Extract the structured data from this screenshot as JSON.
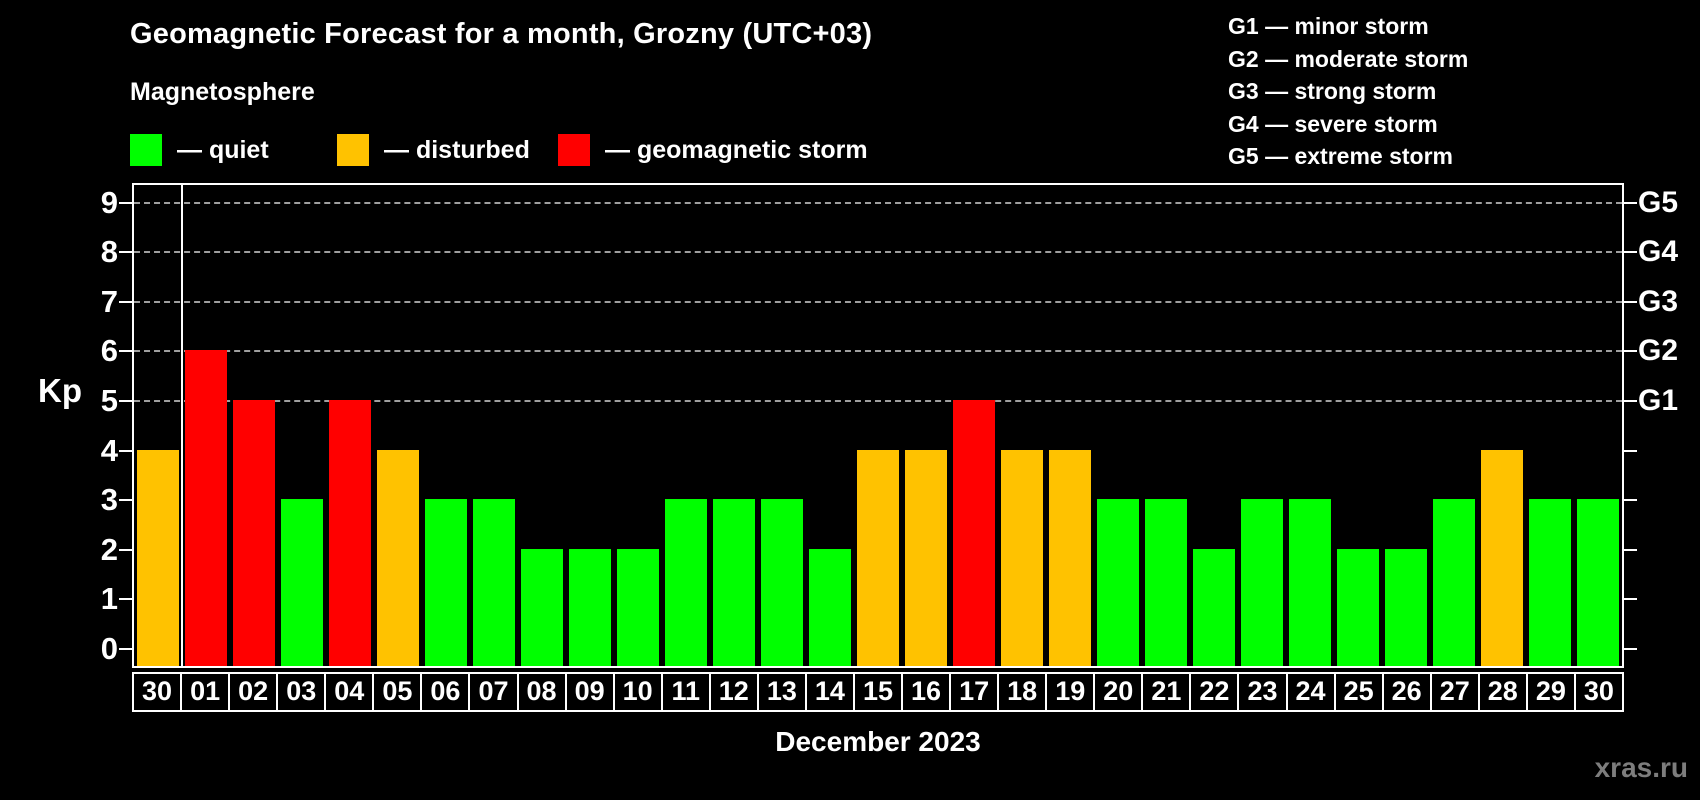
{
  "header": {
    "title": "Geomagnetic Forecast for a month, Grozny (UTC+03)",
    "subtitle": "Magnetosphere"
  },
  "legend": {
    "items": [
      {
        "key": "quiet",
        "label": "— quiet",
        "x": 130
      },
      {
        "key": "disturbed",
        "label": "— disturbed",
        "x": 337
      },
      {
        "key": "storm",
        "label": "— geomagnetic storm",
        "x": 558
      }
    ]
  },
  "g_legend": {
    "items": [
      "G1 — minor storm",
      "G2 — moderate storm",
      "G3 — strong storm",
      "G4 — severe storm",
      "G5 — extreme storm"
    ]
  },
  "colors": {
    "quiet": "#00ff00",
    "disturbed": "#ffc200",
    "storm": "#ff0000",
    "grid": "#9f9f9f",
    "axis": "#ffffff",
    "watermark": "#7d7d7d"
  },
  "axes": {
    "y_label": "Kp",
    "y_ticks": [
      0,
      1,
      2,
      3,
      4,
      5,
      6,
      7,
      8,
      9
    ],
    "gridline_kp": [
      5,
      6,
      7,
      8,
      9
    ],
    "g_ticks": [
      {
        "kp": 5,
        "label": "G1"
      },
      {
        "kp": 6,
        "label": "G2"
      },
      {
        "kp": 7,
        "label": "G3"
      },
      {
        "kp": 8,
        "label": "G4"
      },
      {
        "kp": 9,
        "label": "G5"
      }
    ]
  },
  "x_axis_title": "December 2023",
  "watermark": "xras.ru",
  "chart_data": {
    "type": "bar",
    "title": "Geomagnetic Forecast for a month, Grozny (UTC+03)",
    "xlabel": "December 2023",
    "ylabel": "Kp",
    "ylim": [
      0,
      9.4
    ],
    "grid": "dashed horizontal lines at Kp 5-9 (G1-G5 levels)",
    "legend_position": "top-left (quiet/disturbed/storm), top-right (G1-G5 scale)",
    "categories": [
      "30",
      "01",
      "02",
      "03",
      "04",
      "05",
      "06",
      "07",
      "08",
      "09",
      "10",
      "11",
      "12",
      "13",
      "14",
      "15",
      "16",
      "17",
      "18",
      "19",
      "20",
      "21",
      "22",
      "23",
      "24",
      "25",
      "26",
      "27",
      "28",
      "29",
      "30"
    ],
    "values": [
      4,
      6,
      5,
      3,
      5,
      4,
      3,
      3,
      2,
      2,
      2,
      3,
      3,
      3,
      2,
      4,
      4,
      5,
      4,
      4,
      3,
      3,
      2,
      3,
      3,
      2,
      2,
      3,
      4,
      3,
      3
    ],
    "states": [
      "disturbed",
      "storm",
      "storm",
      "quiet",
      "storm",
      "disturbed",
      "quiet",
      "quiet",
      "quiet",
      "quiet",
      "quiet",
      "quiet",
      "quiet",
      "quiet",
      "quiet",
      "disturbed",
      "disturbed",
      "storm",
      "disturbed",
      "disturbed",
      "quiet",
      "quiet",
      "quiet",
      "quiet",
      "quiet",
      "quiet",
      "quiet",
      "quiet",
      "disturbed",
      "quiet",
      "quiet"
    ],
    "month_boundary_after_index": 0
  }
}
